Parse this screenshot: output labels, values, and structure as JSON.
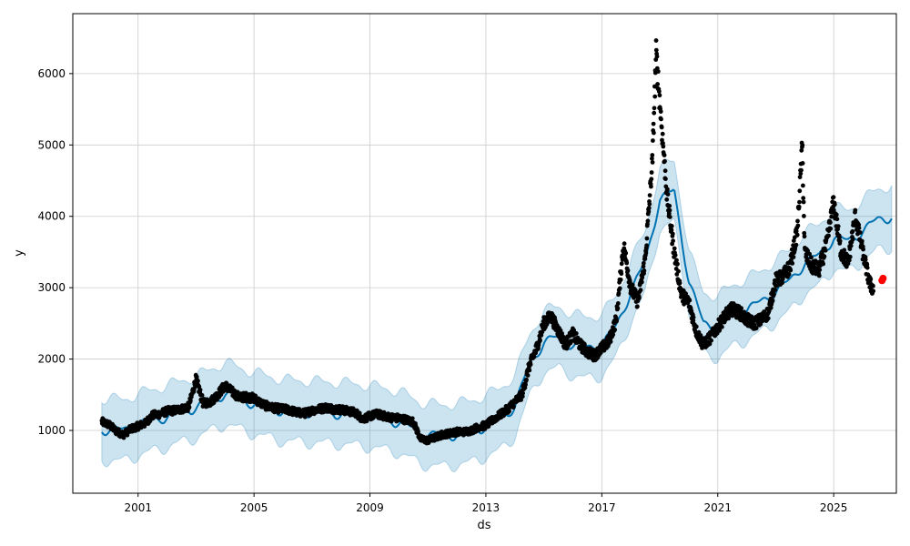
{
  "chart_data": {
    "type": "scatter",
    "title": "",
    "xlabel": "ds",
    "ylabel": "y",
    "x_ticks": [
      "2001",
      "2005",
      "2009",
      "2013",
      "2017",
      "2021",
      "2025"
    ],
    "y_ticks": [
      1000,
      2000,
      3000,
      4000,
      5000,
      6000
    ],
    "xlim": [
      "1998-10-01",
      "2027-03-01"
    ],
    "ylim": [
      120,
      6840
    ],
    "grid": true,
    "legend": "none",
    "colors": {
      "observed": "#000000",
      "forecast_line": "#0072b2",
      "uncertainty_band": "#0072b2",
      "highlight": "#ff0000"
    },
    "series": [
      {
        "kind": "observed-points",
        "points": [
          [
            "1999-10-01",
            1120
          ],
          [
            "2000-01-01",
            1080
          ],
          [
            "2000-04-01",
            990
          ],
          [
            "2000-07-01",
            940
          ],
          [
            "2000-10-01",
            1020
          ],
          [
            "2001-01-01",
            1060
          ],
          [
            "2001-04-01",
            1100
          ],
          [
            "2001-07-01",
            1210
          ],
          [
            "2001-10-01",
            1230
          ],
          [
            "2002-01-01",
            1270
          ],
          [
            "2002-04-01",
            1280
          ],
          [
            "2002-07-01",
            1300
          ],
          [
            "2002-10-01",
            1330
          ],
          [
            "2003-01-01",
            1720
          ],
          [
            "2003-04-01",
            1380
          ],
          [
            "2003-07-01",
            1400
          ],
          [
            "2003-10-01",
            1500
          ],
          [
            "2004-01-01",
            1630
          ],
          [
            "2004-04-01",
            1540
          ],
          [
            "2004-07-01",
            1460
          ],
          [
            "2004-10-01",
            1470
          ],
          [
            "2005-01-01",
            1450
          ],
          [
            "2005-04-01",
            1380
          ],
          [
            "2005-07-01",
            1330
          ],
          [
            "2005-10-01",
            1310
          ],
          [
            "2006-01-01",
            1300
          ],
          [
            "2006-04-01",
            1280
          ],
          [
            "2006-07-01",
            1250
          ],
          [
            "2006-10-01",
            1240
          ],
          [
            "2007-01-01",
            1280
          ],
          [
            "2007-04-01",
            1300
          ],
          [
            "2007-07-01",
            1320
          ],
          [
            "2007-10-01",
            1300
          ],
          [
            "2008-01-01",
            1290
          ],
          [
            "2008-04-01",
            1270
          ],
          [
            "2008-07-01",
            1250
          ],
          [
            "2008-10-01",
            1160
          ],
          [
            "2009-01-01",
            1200
          ],
          [
            "2009-04-01",
            1230
          ],
          [
            "2009-07-01",
            1200
          ],
          [
            "2009-10-01",
            1180
          ],
          [
            "2010-01-01",
            1170
          ],
          [
            "2010-04-01",
            1150
          ],
          [
            "2010-07-01",
            1120
          ],
          [
            "2010-10-01",
            880
          ],
          [
            "2011-01-01",
            860
          ],
          [
            "2011-04-01",
            900
          ],
          [
            "2011-07-01",
            940
          ],
          [
            "2011-10-01",
            960
          ],
          [
            "2012-01-01",
            980
          ],
          [
            "2012-04-01",
            980
          ],
          [
            "2012-07-01",
            1000
          ],
          [
            "2012-10-01",
            1050
          ],
          [
            "2013-01-01",
            1070
          ],
          [
            "2013-04-01",
            1150
          ],
          [
            "2013-07-01",
            1220
          ],
          [
            "2013-10-01",
            1300
          ],
          [
            "2014-01-01",
            1400
          ],
          [
            "2014-04-01",
            1500
          ],
          [
            "2014-07-01",
            1900
          ],
          [
            "2014-10-01",
            2150
          ],
          [
            "2015-01-01",
            2500
          ],
          [
            "2015-04-01",
            2600
          ],
          [
            "2015-07-01",
            2400
          ],
          [
            "2015-10-01",
            2200
          ],
          [
            "2016-01-01",
            2350
          ],
          [
            "2016-04-01",
            2200
          ],
          [
            "2016-07-01",
            2100
          ],
          [
            "2016-10-01",
            2050
          ],
          [
            "2017-01-01",
            2150
          ],
          [
            "2017-04-01",
            2250
          ],
          [
            "2017-07-01",
            2550
          ],
          [
            "2017-10-01",
            3600
          ],
          [
            "2018-01-01",
            3000
          ],
          [
            "2018-04-01",
            2800
          ],
          [
            "2018-07-01",
            3400
          ],
          [
            "2018-10-01",
            4800
          ],
          [
            "2018-11-15",
            6300
          ],
          [
            "2019-01-01",
            5600
          ],
          [
            "2019-04-01",
            4300
          ],
          [
            "2019-07-01",
            3500
          ],
          [
            "2019-10-01",
            2900
          ],
          [
            "2020-01-01",
            2800
          ],
          [
            "2020-04-01",
            2400
          ],
          [
            "2020-07-01",
            2200
          ],
          [
            "2020-10-01",
            2300
          ],
          [
            "2021-01-01",
            2450
          ],
          [
            "2021-04-01",
            2600
          ],
          [
            "2021-07-01",
            2700
          ],
          [
            "2021-10-01",
            2650
          ],
          [
            "2022-01-01",
            2550
          ],
          [
            "2022-04-01",
            2500
          ],
          [
            "2022-07-01",
            2550
          ],
          [
            "2022-10-01",
            2650
          ],
          [
            "2023-01-01",
            3100
          ],
          [
            "2023-04-01",
            3150
          ],
          [
            "2023-07-01",
            3300
          ],
          [
            "2023-10-01",
            3800
          ],
          [
            "2023-12-01",
            5000
          ],
          [
            "2024-01-01",
            3500
          ],
          [
            "2024-04-01",
            3300
          ],
          [
            "2024-07-01",
            3250
          ],
          [
            "2024-10-01",
            3600
          ],
          [
            "2025-01-01",
            4200
          ],
          [
            "2025-04-01",
            3500
          ],
          [
            "2025-07-01",
            3350
          ],
          [
            "2025-10-01",
            4000
          ],
          [
            "2026-01-01",
            3500
          ],
          [
            "2026-04-01",
            3050
          ],
          [
            "2026-05-15",
            2980
          ]
        ]
      },
      {
        "kind": "trend-line",
        "points": [
          [
            "1999-10-01",
            1020
          ],
          [
            "2000-07-01",
            1000
          ],
          [
            "2001-01-01",
            1080
          ],
          [
            "2002-01-01",
            1200
          ],
          [
            "2003-01-01",
            1330
          ],
          [
            "2004-01-01",
            1520
          ],
          [
            "2005-01-01",
            1380
          ],
          [
            "2006-01-01",
            1280
          ],
          [
            "2007-01-01",
            1260
          ],
          [
            "2008-01-01",
            1240
          ],
          [
            "2009-01-01",
            1200
          ],
          [
            "2010-01-01",
            1120
          ],
          [
            "2010-10-01",
            960
          ],
          [
            "2011-07-01",
            920
          ],
          [
            "2012-07-01",
            980
          ],
          [
            "2013-07-01",
            1150
          ],
          [
            "2014-01-01",
            1350
          ],
          [
            "2014-07-01",
            1900
          ],
          [
            "2015-01-01",
            2250
          ],
          [
            "2015-07-01",
            2300
          ],
          [
            "2016-01-01",
            2200
          ],
          [
            "2016-07-01",
            2150
          ],
          [
            "2017-01-01",
            2200
          ],
          [
            "2017-07-01",
            2450
          ],
          [
            "2018-01-01",
            2950
          ],
          [
            "2018-07-01",
            3350
          ],
          [
            "2019-01-01",
            4250
          ],
          [
            "2019-07-01",
            4350
          ],
          [
            "2020-01-01",
            3100
          ],
          [
            "2020-07-01",
            2500
          ],
          [
            "2021-01-01",
            2450
          ],
          [
            "2021-07-01",
            2600
          ],
          [
            "2022-01-01",
            2700
          ],
          [
            "2022-07-01",
            2800
          ],
          [
            "2023-01-01",
            2950
          ],
          [
            "2023-07-01",
            3100
          ],
          [
            "2024-01-01",
            3350
          ],
          [
            "2024-07-01",
            3450
          ],
          [
            "2025-01-01",
            3700
          ],
          [
            "2025-07-01",
            3650
          ],
          [
            "2026-01-01",
            3800
          ],
          [
            "2026-07-01",
            3950
          ],
          [
            "2027-01-01",
            4000
          ]
        ]
      },
      {
        "kind": "uncertainty-band",
        "halfwidth": 430
      },
      {
        "kind": "highlight-points",
        "points": [
          [
            "2026-09-01",
            3100
          ],
          [
            "2026-09-15",
            3130
          ]
        ]
      }
    ]
  }
}
